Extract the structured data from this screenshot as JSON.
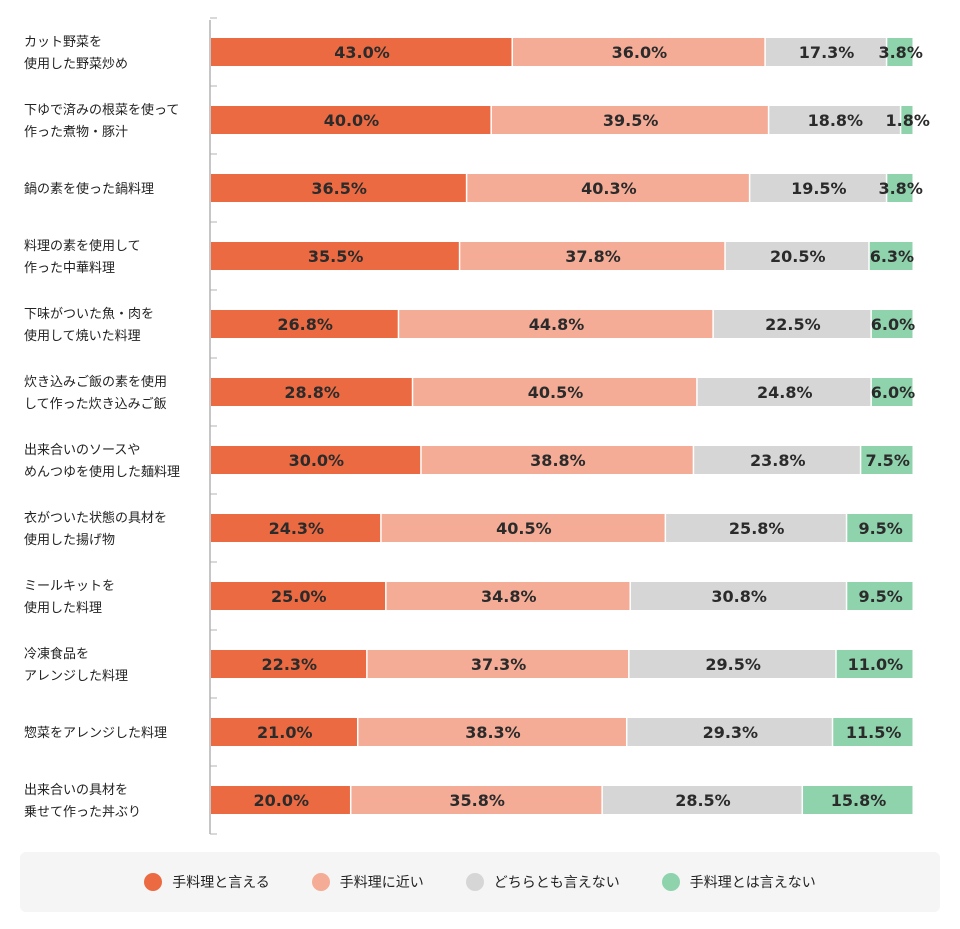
{
  "chart_data": {
    "type": "bar",
    "orientation": "horizontal",
    "stacked": true,
    "percent_stacked": true,
    "categories": [
      [
        "カット野菜を",
        "使用した野菜炒め"
      ],
      [
        "下ゆで済みの根菜を使って",
        "作った煮物・豚汁"
      ],
      [
        "鍋の素を使った鍋料理"
      ],
      [
        "料理の素を使用して",
        "作った中華料理"
      ],
      [
        "下味がついた魚・肉を",
        "使用して焼いた料理"
      ],
      [
        "炊き込みご飯の素を使用",
        "して作った炊き込みご飯"
      ],
      [
        "出来合いのソースや",
        "めんつゆを使用した麺料理"
      ],
      [
        "衣がついた状態の具材を",
        "使用した揚げ物"
      ],
      [
        "ミールキットを",
        "使用した料理"
      ],
      [
        "冷凍食品を",
        "アレンジした料理"
      ],
      [
        "惣菜をアレンジした料理"
      ],
      [
        "出来合いの具材を",
        "乗せて作った丼ぶり"
      ]
    ],
    "series": [
      {
        "name": "手料理と言える",
        "color": "#ec6a42",
        "values": [
          43.0,
          40.0,
          36.5,
          35.5,
          26.8,
          28.8,
          30.0,
          24.3,
          25.0,
          22.3,
          21.0,
          20.0
        ]
      },
      {
        "name": "手料理に近い",
        "color": "#f4ac96",
        "values": [
          36.0,
          39.5,
          40.3,
          37.8,
          44.8,
          40.5,
          38.8,
          40.5,
          34.8,
          37.3,
          38.3,
          35.8
        ]
      },
      {
        "name": "どちらとも言えない",
        "color": "#d6d6d6",
        "values": [
          17.3,
          18.8,
          19.5,
          20.5,
          22.5,
          24.8,
          23.8,
          25.8,
          30.8,
          29.5,
          29.3,
          28.5
        ]
      },
      {
        "name": "手料理とは言えない",
        "color": "#8fd3ad",
        "values": [
          3.8,
          1.8,
          3.8,
          6.3,
          6.0,
          6.0,
          7.5,
          9.5,
          9.5,
          11.0,
          11.5,
          15.8
        ]
      }
    ],
    "value_labels": [
      [
        "43.0%",
        "36.0%",
        "17.3%",
        "3.8%"
      ],
      [
        "40.0%",
        "39.5%",
        "18.8%",
        "1.8%"
      ],
      [
        "36.5%",
        "40.3%",
        "19.5%",
        "3.8%"
      ],
      [
        "35.5%",
        "37.8%",
        "20.5%",
        "6.3%"
      ],
      [
        "26.8%",
        "44.8%",
        "22.5%",
        "6.0%"
      ],
      [
        "28.8%",
        "40.5%",
        "24.8%",
        "6.0%"
      ],
      [
        "30.0%",
        "38.8%",
        "23.8%",
        "7.5%"
      ],
      [
        "24.3%",
        "40.5%",
        "25.8%",
        "9.5%"
      ],
      [
        "25.0%",
        "34.8%",
        "30.8%",
        "9.5%"
      ],
      [
        "22.3%",
        "37.3%",
        "29.5%",
        "11.0%"
      ],
      [
        "21.0%",
        "38.3%",
        "29.3%",
        "11.5%"
      ],
      [
        "20.0%",
        "35.8%",
        "28.5%",
        "15.8%"
      ]
    ],
    "legend_position": "bottom",
    "grid": false
  }
}
